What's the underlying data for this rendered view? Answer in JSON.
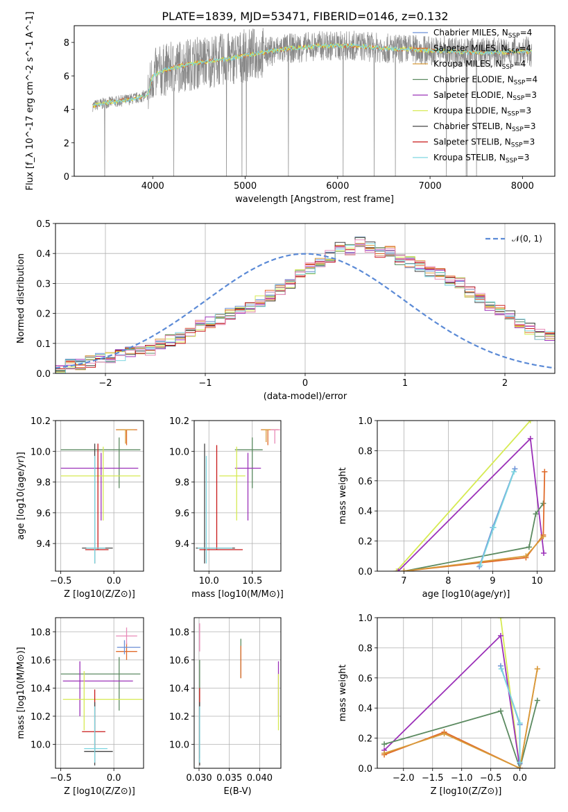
{
  "figure": {
    "title": "PLATE=1839, MJD=53471, FIBERID=0146, z=0.132"
  },
  "colors": {
    "Chabrier MILES": "#6b8fd6",
    "Salpeter MILES": "#e06a2a",
    "Kroupa MILES": "#d89b3a",
    "Chabrier ELODIE": "#5b8a60",
    "Salpeter ELODIE": "#9b30b8",
    "Kroupa ELODIE": "#d6ea52",
    "Chabrier STELIB": "#444444",
    "Salpeter STELIB": "#c81818",
    "Kroupa STELIB": "#7dd6e0",
    "Kroupa MILES alt": "#e88ab8",
    "normal": "#5b8ad6",
    "data": "#888888"
  },
  "chart_data": [
    {
      "id": "spectrum",
      "type": "line",
      "title": "PLATE=1839, MJD=53471, FIBERID=0146, z=0.132",
      "xlabel": "wavelength [Angstrom, rest frame]",
      "ylabel": "Flux [f_λ 10^-17 erg cm^-2 s^-1 A^-1]",
      "xlim": [
        3150,
        8350
      ],
      "ylim": [
        0,
        9
      ],
      "xticks": [
        "4000",
        "5000",
        "6000",
        "7000",
        "8000"
      ],
      "yticks": [
        "0",
        "2",
        "4",
        "6",
        "8"
      ],
      "grid": false,
      "legend_position": "right",
      "legend": [
        {
          "label": "Chabrier MILES, N",
          "sub": "SSP",
          "suffix": "=4",
          "color": "#6b8fd6"
        },
        {
          "label": "Salpeter MILES, N",
          "sub": "SSP",
          "suffix": "=4",
          "color": "#e06a2a"
        },
        {
          "label": "Kroupa MILES, N",
          "sub": "SSP",
          "suffix": "=4",
          "color": "#d89b3a"
        },
        {
          "label": "Chabrier ELODIE, N",
          "sub": "SSP",
          "suffix": "=4",
          "color": "#5b8a60"
        },
        {
          "label": "Salpeter ELODIE, N",
          "sub": "SSP",
          "suffix": "=3",
          "color": "#9b30b8"
        },
        {
          "label": "Kroupa ELODIE, N",
          "sub": "SSP",
          "suffix": "=3",
          "color": "#d6ea52"
        },
        {
          "label": "Chabrier STELIB, N",
          "sub": "SSP",
          "suffix": "=3",
          "color": "#444444"
        },
        {
          "label": "Salpeter STELIB, N",
          "sub": "SSP",
          "suffix": "=3",
          "color": "#c81818"
        },
        {
          "label": "Kroupa STELIB, N",
          "sub": "SSP",
          "suffix": "=3",
          "color": "#7dd6e0"
        }
      ],
      "model_continuum": {
        "x": [
          3350,
          3500,
          3650,
          3750,
          3850,
          3950,
          4000,
          4100,
          4300,
          4500,
          4800,
          5000,
          5200,
          5400,
          5600,
          5800,
          6000,
          6200,
          6400,
          6600,
          6800,
          7000,
          7200,
          7400,
          7600,
          7800,
          8000,
          8100
        ],
        "y": [
          4.2,
          4.4,
          4.5,
          4.6,
          4.7,
          4.9,
          6.0,
          6.3,
          6.6,
          6.8,
          7.0,
          7.2,
          7.4,
          7.6,
          7.7,
          7.8,
          7.8,
          7.8,
          7.7,
          7.6,
          7.6,
          7.5,
          7.5,
          7.4,
          7.4,
          7.4,
          7.5,
          7.4
        ]
      }
    },
    {
      "id": "residuals",
      "type": "bar",
      "xlabel": "(data-model)/error",
      "ylabel": "Normed distribution",
      "xlim": [
        -2.5,
        2.5
      ],
      "ylim": [
        0,
        0.5
      ],
      "xticks": [
        "−2",
        "−1",
        "0",
        "1",
        "2"
      ],
      "yticks": [
        "0.0",
        "0.1",
        "0.2",
        "0.3",
        "0.4",
        "0.5"
      ],
      "grid": true,
      "legend_position": "top-right",
      "legend": [
        {
          "label": "𝒩(0, 1)",
          "color": "#5b8ad6"
        }
      ],
      "bin_width": 0.1,
      "bin_start": -2.5,
      "histogram": [
        0.02,
        0.03,
        0.03,
        0.04,
        0.05,
        0.05,
        0.06,
        0.07,
        0.08,
        0.08,
        0.1,
        0.11,
        0.12,
        0.14,
        0.16,
        0.17,
        0.18,
        0.2,
        0.21,
        0.22,
        0.24,
        0.26,
        0.28,
        0.3,
        0.33,
        0.35,
        0.37,
        0.39,
        0.42,
        0.41,
        0.44,
        0.42,
        0.4,
        0.41,
        0.38,
        0.37,
        0.36,
        0.34,
        0.33,
        0.31,
        0.3,
        0.27,
        0.25,
        0.23,
        0.21,
        0.19,
        0.17,
        0.15,
        0.13,
        0.12
      ],
      "normal": {
        "mean": 0,
        "sigma": 1,
        "label": "𝒩(0, 1)"
      }
    },
    {
      "id": "age_vs_Z",
      "type": "scatter",
      "xlabel": "Z [log10(Z/Z⊙)]",
      "ylabel": "age [log10(age/yr)]",
      "xlim": [
        -0.55,
        0.28
      ],
      "ylim": [
        9.22,
        10.2
      ],
      "xticks": [
        "−0.5",
        "0.0"
      ],
      "yticks": [
        "9.4",
        "9.6",
        "9.8",
        "10.0",
        "10.2"
      ],
      "grid": true,
      "points": [
        {
          "x": 0.12,
          "y": 10.14,
          "xerr": [
            0.1,
            0.1
          ],
          "yerr": [
            0.1,
            0.0
          ],
          "color": "#e06a2a"
        },
        {
          "x": 0.11,
          "y": 10.14,
          "xerr": [
            0.08,
            0.08
          ],
          "yerr": [
            0.09,
            0.0
          ],
          "color": "#d89b3a"
        },
        {
          "x": 0.05,
          "y": 10.01,
          "xerr": [
            0.55,
            0.2
          ],
          "yerr": [
            0.25,
            0.08
          ],
          "color": "#5b8a60"
        },
        {
          "x": -0.12,
          "y": 9.89,
          "xerr": [
            0.38,
            0.35
          ],
          "yerr": [
            0.34,
            0.1
          ],
          "color": "#9b30b8"
        },
        {
          "x": -0.1,
          "y": 9.84,
          "xerr": [
            0.4,
            0.35
          ],
          "yerr": [
            0.29,
            0.19
          ],
          "color": "#d6ea52"
        },
        {
          "x": -0.18,
          "y": 9.37,
          "xerr": [
            0.12,
            0.17
          ],
          "yerr": [
            0.1,
            0.68
          ],
          "color": "#444444"
        },
        {
          "x": -0.15,
          "y": 9.36,
          "xerr": [
            0.12,
            0.1
          ],
          "yerr": [
            0.0,
            0.69
          ],
          "color": "#c81818"
        },
        {
          "x": -0.18,
          "y": 9.37,
          "xerr": [
            0.08,
            0.1
          ],
          "yerr": [
            0.1,
            0.6
          ],
          "color": "#7dd6e0"
        }
      ]
    },
    {
      "id": "age_vs_mass",
      "type": "scatter",
      "xlabel": "mass [log10(M/M⊙)]",
      "ylabel": "",
      "xlim": [
        9.83,
        10.83
      ],
      "ylim": [
        9.22,
        10.2
      ],
      "xticks": [
        "10.0",
        "10.5"
      ],
      "yticks": [
        "9.4",
        "9.6",
        "9.8",
        "10.0",
        "10.2"
      ],
      "grid": true,
      "points": [
        {
          "x": 10.68,
          "y": 10.14,
          "xerr": [
            0.08,
            0.12
          ],
          "yerr": [
            0.1,
            0.0
          ],
          "color": "#e06a2a"
        },
        {
          "x": 10.66,
          "y": 10.14,
          "xerr": [
            0.05,
            0.1
          ],
          "yerr": [
            0.08,
            0.0
          ],
          "color": "#d89b3a"
        },
        {
          "x": 10.76,
          "y": 10.14,
          "xerr": [
            0.05,
            0.06
          ],
          "yerr": [
            0.09,
            0.0
          ],
          "color": "#e88ab8"
        },
        {
          "x": 10.5,
          "y": 10.01,
          "xerr": [
            0.2,
            0.12
          ],
          "yerr": [
            0.25,
            0.08
          ],
          "color": "#5b8a60"
        },
        {
          "x": 10.45,
          "y": 9.89,
          "xerr": [
            0.15,
            0.15
          ],
          "yerr": [
            0.34,
            0.1
          ],
          "color": "#9b30b8"
        },
        {
          "x": 10.32,
          "y": 9.84,
          "xerr": [
            0.2,
            0.1
          ],
          "yerr": [
            0.29,
            0.19
          ],
          "color": "#d6ea52"
        },
        {
          "x": 9.95,
          "y": 9.37,
          "xerr": [
            0.1,
            0.35
          ],
          "yerr": [
            0.1,
            0.68
          ],
          "color": "#444444"
        },
        {
          "x": 10.09,
          "y": 9.36,
          "xerr": [
            0.2,
            0.3
          ],
          "yerr": [
            0.0,
            0.68
          ],
          "color": "#c81818"
        },
        {
          "x": 9.97,
          "y": 9.37,
          "xerr": [
            0.1,
            0.3
          ],
          "yerr": [
            0.1,
            0.6
          ],
          "color": "#7dd6e0"
        }
      ]
    },
    {
      "id": "weight_vs_age",
      "type": "line",
      "xlabel": "age [log10(age/yr)]",
      "ylabel": "mass weight",
      "xlim": [
        6.4,
        10.4
      ],
      "ylim": [
        0,
        1
      ],
      "xticks": [
        "7",
        "8",
        "9",
        "10"
      ],
      "yticks": [
        "0.0",
        "0.2",
        "0.4",
        "0.6",
        "0.8",
        "1.0"
      ],
      "grid": true,
      "series": [
        {
          "color": "#d6ea52",
          "x": [
            6.83,
            9.85
          ],
          "y": [
            0.0,
            1.0
          ]
        },
        {
          "color": "#9b30b8",
          "x": [
            6.87,
            9.85,
            10.15
          ],
          "y": [
            0.0,
            0.88,
            0.12
          ]
        },
        {
          "color": "#5b8a60",
          "x": [
            7.0,
            9.82,
            9.97,
            10.14
          ],
          "y": [
            0.0,
            0.16,
            0.38,
            0.45
          ]
        },
        {
          "color": "#e06a2a",
          "x": [
            7.0,
            9.75,
            10.14,
            10.17,
            10.17
          ],
          "y": [
            0.0,
            0.09,
            0.24,
            0.66,
            0.66
          ]
        },
        {
          "color": "#d89b3a",
          "x": [
            7.0,
            9.75,
            10.14
          ],
          "y": [
            0.0,
            0.1,
            0.23
          ]
        },
        {
          "color": "#6b8fd6",
          "x": [
            8.7,
            9.0,
            9.5
          ],
          "y": [
            0.03,
            0.29,
            0.68
          ]
        },
        {
          "color": "#7dd6e0",
          "x": [
            8.72,
            9.02,
            9.48
          ],
          "y": [
            0.04,
            0.29,
            0.66
          ]
        }
      ]
    },
    {
      "id": "mass_vs_Z",
      "type": "scatter",
      "xlabel": "Z [log10(Z/Z⊙)]",
      "ylabel": "mass [log10(M/M⊙)]",
      "xlim": [
        -0.55,
        0.28
      ],
      "ylim": [
        9.83,
        10.9
      ],
      "xticks": [
        "−0.5",
        "0.0"
      ],
      "yticks": [
        "10.0",
        "10.2",
        "10.4",
        "10.6",
        "10.8"
      ],
      "grid": true,
      "points": [
        {
          "x": 0.12,
          "y": 10.66,
          "xerr": [
            0.1,
            0.1
          ],
          "yerr": [
            0.06,
            0.06
          ],
          "color": "#e06a2a"
        },
        {
          "x": 0.12,
          "y": 10.77,
          "xerr": [
            0.1,
            0.1
          ],
          "yerr": [
            0.06,
            0.06
          ],
          "color": "#e88ab8"
        },
        {
          "x": 0.1,
          "y": 10.69,
          "xerr": [
            0.07,
            0.15
          ],
          "yerr": [
            0.05,
            0.05
          ],
          "color": "#6b8fd6"
        },
        {
          "x": 0.05,
          "y": 10.5,
          "xerr": [
            0.55,
            0.2
          ],
          "yerr": [
            0.26,
            0.12
          ],
          "color": "#5b8a60"
        },
        {
          "x": -0.32,
          "y": 10.45,
          "xerr": [
            0.16,
            0.5
          ],
          "yerr": [
            0.25,
            0.14
          ],
          "color": "#9b30b8"
        },
        {
          "x": -0.28,
          "y": 10.32,
          "xerr": [
            0.2,
            0.55
          ],
          "yerr": [
            0.22,
            0.2
          ],
          "color": "#d6ea52"
        },
        {
          "x": -0.18,
          "y": 10.09,
          "xerr": [
            0.12,
            0.1
          ],
          "yerr": [
            0.12,
            0.3
          ],
          "color": "#c81818"
        },
        {
          "x": -0.18,
          "y": 9.95,
          "xerr": [
            0.1,
            0.17
          ],
          "yerr": [
            0.1,
            0.35
          ],
          "color": "#444444"
        },
        {
          "x": -0.18,
          "y": 9.97,
          "xerr": [
            0.1,
            0.12
          ],
          "yerr": [
            0.1,
            0.3
          ],
          "color": "#7dd6e0"
        }
      ]
    },
    {
      "id": "mass_vs_ebv",
      "type": "scatter",
      "xlabel": "E(B-V)",
      "ylabel": "",
      "xlim": [
        0.0292,
        0.0435
      ],
      "ylim": [
        9.83,
        10.9
      ],
      "xticks": [
        "0.030",
        "0.035",
        "0.040"
      ],
      "yticks": [
        "10.0",
        "10.2",
        "10.4",
        "10.6",
        "10.8"
      ],
      "grid": true,
      "points": [
        {
          "x": 0.0301,
          "y": 10.76,
          "yerr": [
            0.1,
            0.1
          ],
          "color": "#e88ab8"
        },
        {
          "x": 0.0301,
          "y": 10.5,
          "yerr": [
            0.26,
            0.1
          ],
          "color": "#5b8a60"
        },
        {
          "x": 0.0301,
          "y": 10.1,
          "yerr": [
            0.2,
            0.3
          ],
          "color": "#c81818"
        },
        {
          "x": 0.0301,
          "y": 9.95,
          "yerr": [
            0.1,
            0.35
          ],
          "color": "#444444"
        },
        {
          "x": 0.0301,
          "y": 9.97,
          "yerr": [
            0.1,
            0.3
          ],
          "color": "#7dd6e0"
        },
        {
          "x": 0.0369,
          "y": 10.62,
          "yerr": [
            0.15,
            0.13
          ],
          "color": "#5b8a60"
        },
        {
          "x": 0.0369,
          "y": 10.6,
          "yerr": [
            0.13,
            0.1
          ],
          "color": "#e06a2a"
        },
        {
          "x": 0.0431,
          "y": 10.45,
          "yerr": [
            0.25,
            0.14
          ],
          "color": "#9b30b8"
        },
        {
          "x": 0.0431,
          "y": 10.3,
          "yerr": [
            0.2,
            0.2
          ],
          "color": "#d6ea52"
        }
      ]
    },
    {
      "id": "weight_vs_Z",
      "type": "line",
      "xlabel": "Z [log10(Z/Z⊙)]",
      "ylabel": "mass weight",
      "xlim": [
        -2.45,
        0.6
      ],
      "ylim": [
        0,
        1
      ],
      "xticks": [
        "−2.0",
        "−1.5",
        "−1.0",
        "−0.5",
        "0.0"
      ],
      "yticks": [
        "0.0",
        "0.2",
        "0.4",
        "0.6",
        "0.8",
        "1.0"
      ],
      "grid": true,
      "series": [
        {
          "color": "#d6ea52",
          "x": [
            -0.33,
            0.0
          ],
          "y": [
            1.0,
            0.0
          ]
        },
        {
          "color": "#9b30b8",
          "x": [
            -2.33,
            -0.33,
            0.0
          ],
          "y": [
            0.12,
            0.88,
            0.0
          ]
        },
        {
          "color": "#5b8a60",
          "x": [
            -2.33,
            -0.33,
            0.0,
            0.3
          ],
          "y": [
            0.16,
            0.38,
            0.0,
            0.45
          ]
        },
        {
          "color": "#e06a2a",
          "x": [
            -2.33,
            -1.3,
            0.0,
            0.3
          ],
          "y": [
            0.09,
            0.24,
            0.0,
            0.66
          ]
        },
        {
          "color": "#d89b3a",
          "x": [
            -2.33,
            -1.3,
            0.0,
            0.3
          ],
          "y": [
            0.1,
            0.23,
            0.0,
            0.66
          ]
        },
        {
          "color": "#6b8fd6",
          "x": [
            -0.33,
            0.0,
            0.0
          ],
          "y": [
            0.68,
            0.29,
            0.03
          ]
        },
        {
          "color": "#7dd6e0",
          "x": [
            -0.32,
            0.0,
            0.0
          ],
          "y": [
            0.66,
            0.3,
            0.04
          ]
        }
      ]
    }
  ]
}
